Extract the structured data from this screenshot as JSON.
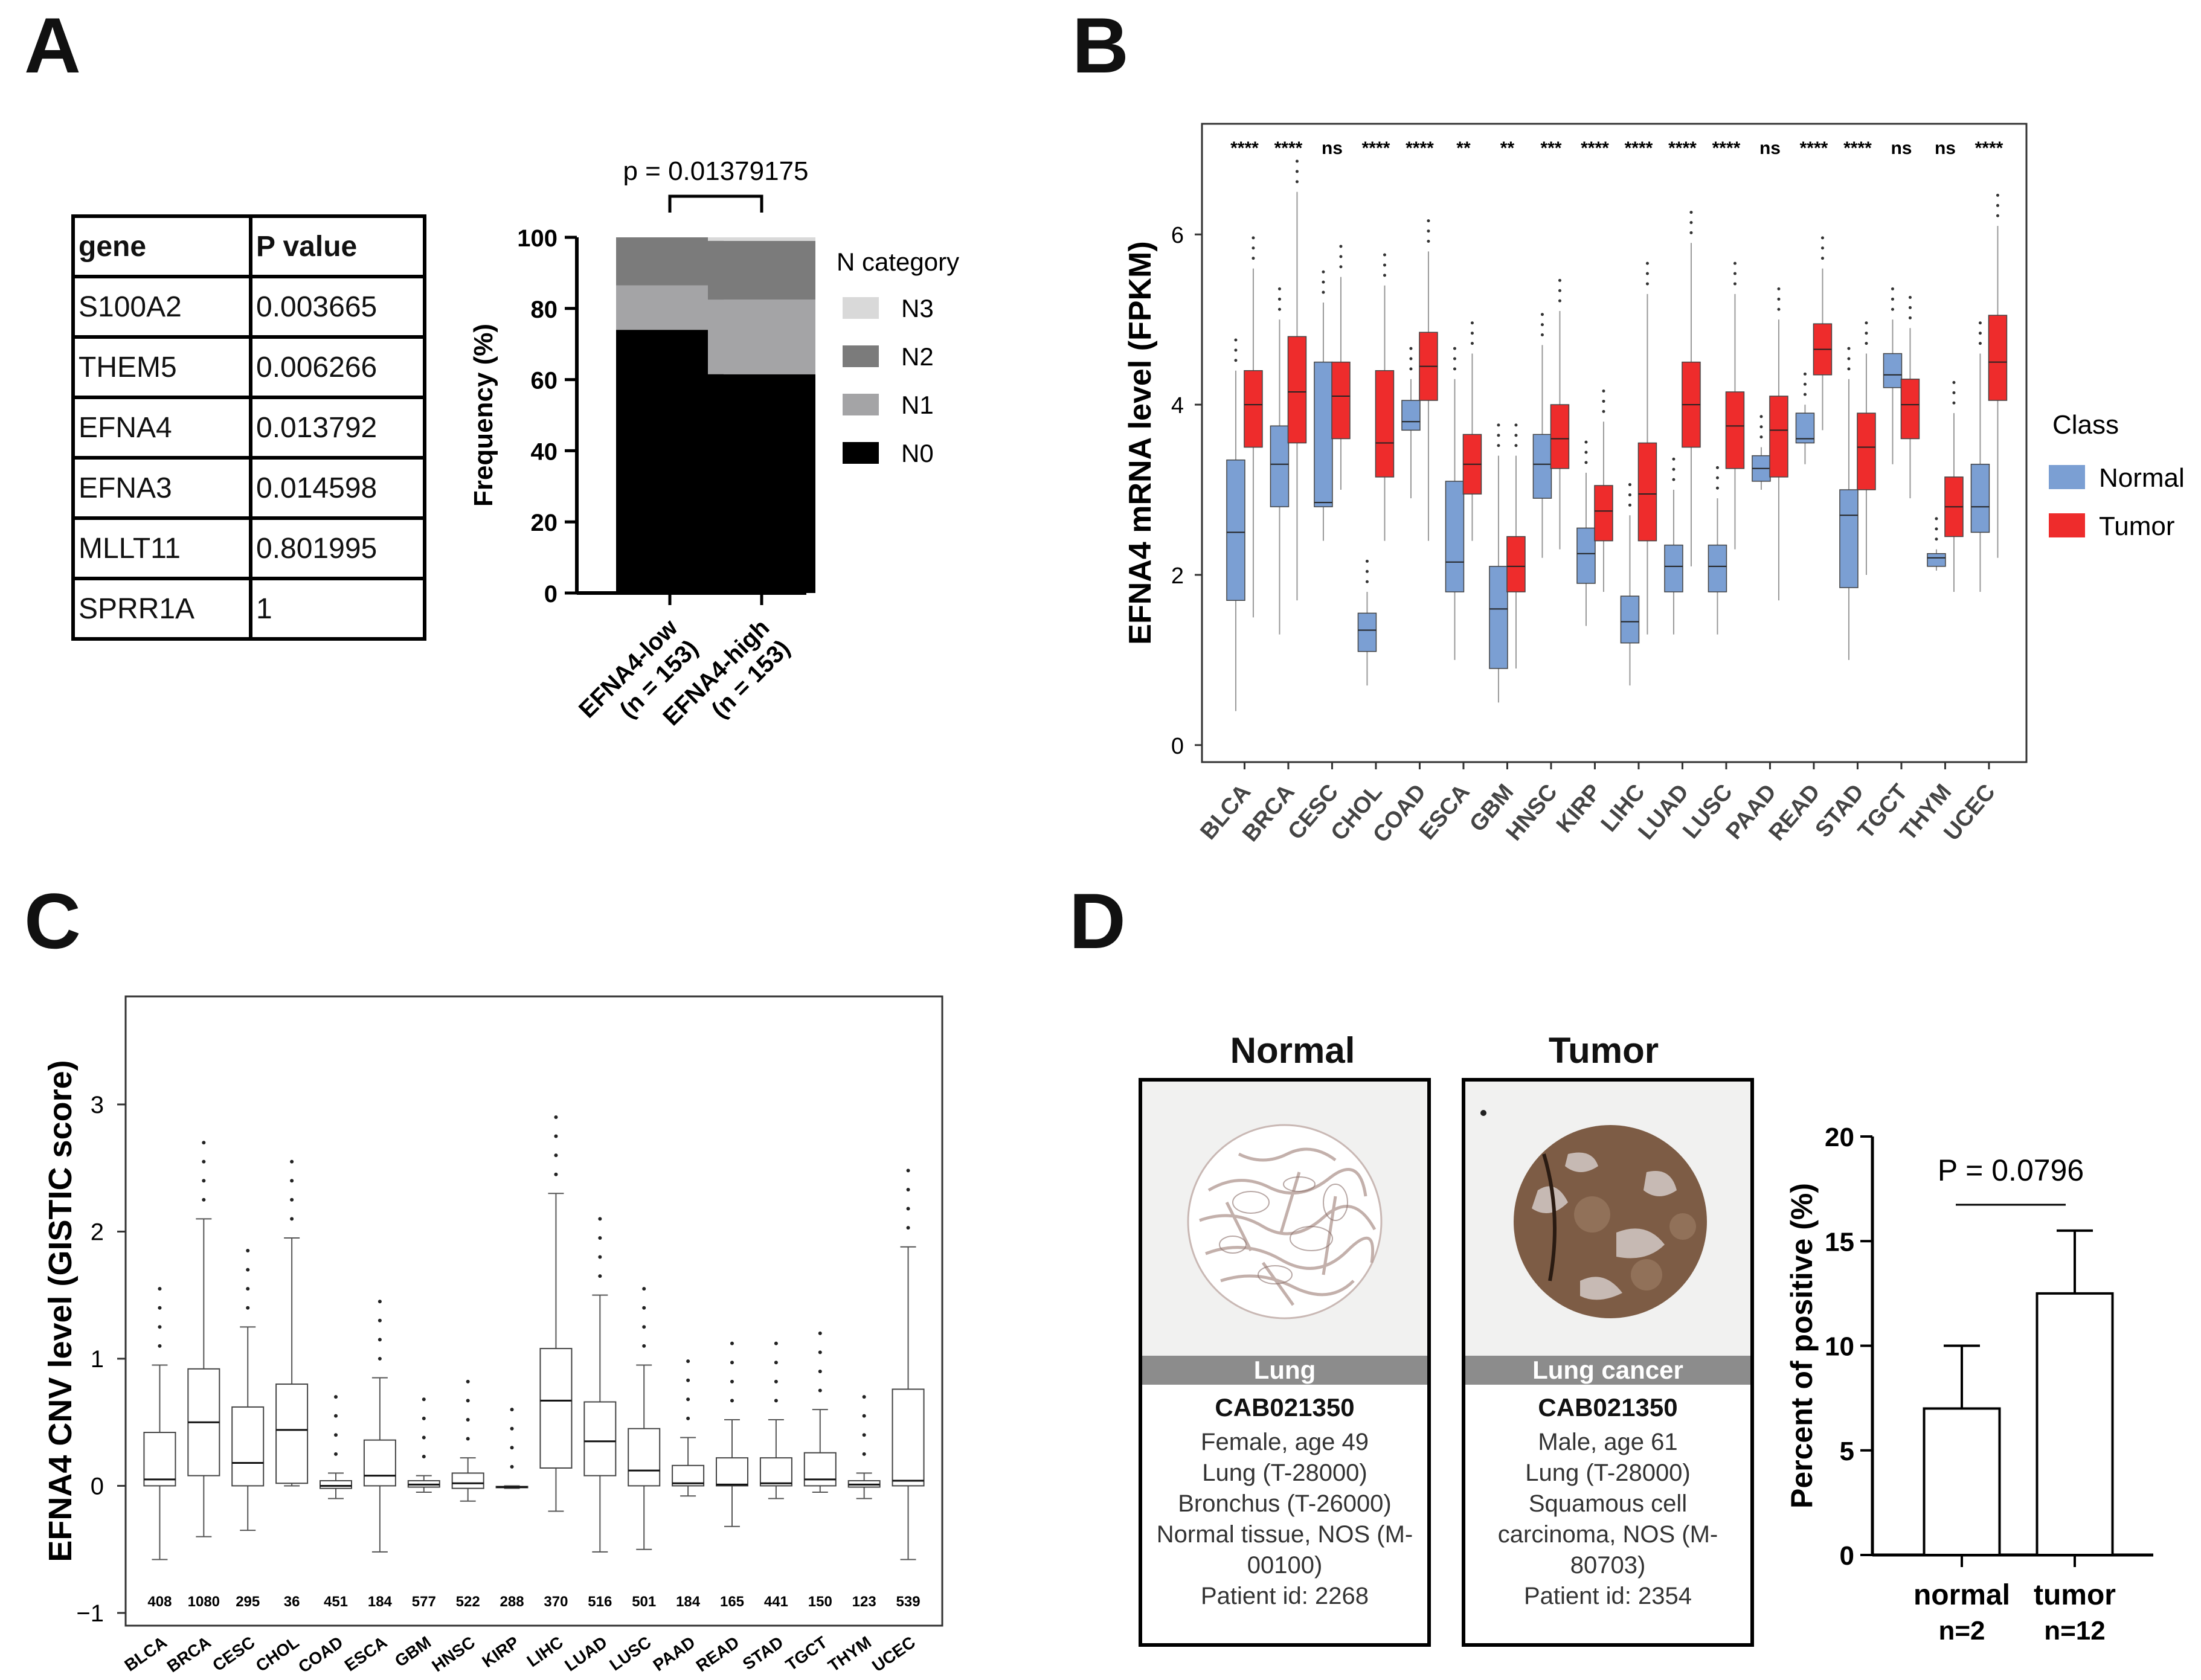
{
  "panel_labels": [
    "A",
    "B",
    "C",
    "D"
  ],
  "panel_a_table": {
    "headers": [
      "gene",
      "P value"
    ],
    "rows": [
      [
        "S100A2",
        "0.003665"
      ],
      [
        "THEM5",
        "0.006266"
      ],
      [
        "EFNA4",
        "0.013792"
      ],
      [
        "EFNA3",
        "0.014598"
      ],
      [
        "MLLT11",
        "0.801995"
      ],
      [
        "SPRR1A",
        "1"
      ]
    ]
  },
  "panel_d_tma": {
    "normal": {
      "title": "Normal",
      "band": "Lung",
      "antibody": "CAB021350",
      "lines": [
        "Female, age 49",
        "Lung (T-28000)",
        "Bronchus (T-26000)",
        "Normal tissue, NOS (M-",
        "00100)",
        "Patient id: 2268"
      ]
    },
    "tumor": {
      "title": "Tumor",
      "band": "Lung cancer",
      "antibody": "CAB021350",
      "lines": [
        "Male, age 61",
        "Lung (T-28000)",
        "Squamous cell",
        "carcinoma, NOS (M-",
        "80703)",
        "Patient id: 2354"
      ]
    }
  },
  "chart_data": [
    {
      "id": "A",
      "type": "bar",
      "stacked": true,
      "title": "p = 0.01379175",
      "ylabel": "Frequency (%)",
      "ylim": [
        0,
        100
      ],
      "yticks": [
        0,
        20,
        40,
        60,
        80,
        100
      ],
      "categories": [
        "EFNA4-low\n(n = 153)",
        "EFNA4-high\n(n = 153)"
      ],
      "legend_title": "N category",
      "series": [
        {
          "name": "N0",
          "color": "#000000",
          "values": [
            74,
            61.5
          ]
        },
        {
          "name": "N1",
          "color": "#a4a4a6",
          "values": [
            12.5,
            21
          ]
        },
        {
          "name": "N2",
          "color": "#7b7b7b",
          "values": [
            13.5,
            16.5
          ]
        },
        {
          "name": "N3",
          "color": "#d9d9d9",
          "values": [
            0,
            1
          ]
        }
      ]
    },
    {
      "id": "B",
      "type": "box",
      "ylabel": "EFNA4 mRNA level (FPKM)",
      "ylim": [
        -0.2,
        7.3
      ],
      "yticks": [
        0,
        2,
        4,
        6
      ],
      "legend_title": "Class",
      "classes": [
        {
          "name": "Normal",
          "color": "#7b9fd3"
        },
        {
          "name": "Tumor",
          "color": "#ee2c2c"
        }
      ],
      "categories": [
        "BLCA",
        "BRCA",
        "CESC",
        "CHOL",
        "COAD",
        "ESCA",
        "GBM",
        "HNSC",
        "KIRP",
        "LIHC",
        "LUAD",
        "LUSC",
        "PAAD",
        "READ",
        "STAD",
        "TGCT",
        "THYM",
        "UCEC"
      ],
      "significance": [
        "****",
        "****",
        "ns",
        "****",
        "****",
        "**",
        "**",
        "***",
        "****",
        "****",
        "****",
        "****",
        "ns",
        "****",
        "****",
        "ns",
        "ns",
        "****"
      ],
      "normal": [
        {
          "whislo": 0.4,
          "q1": 1.7,
          "med": 2.5,
          "q3": 3.35,
          "whishi": 4.4
        },
        {
          "whislo": 1.3,
          "q1": 2.8,
          "med": 3.3,
          "q3": 3.75,
          "whishi": 5.0
        },
        {
          "whislo": 2.4,
          "q1": 2.8,
          "med": 2.85,
          "q3": 4.5,
          "whishi": 5.2
        },
        {
          "whislo": 0.7,
          "q1": 1.1,
          "med": 1.35,
          "q3": 1.55,
          "whishi": 1.8
        },
        {
          "whislo": 2.9,
          "q1": 3.7,
          "med": 3.8,
          "q3": 4.05,
          "whishi": 4.3
        },
        {
          "whislo": 1.0,
          "q1": 1.8,
          "med": 2.15,
          "q3": 3.1,
          "whishi": 4.3
        },
        {
          "whislo": 0.5,
          "q1": 0.9,
          "med": 1.6,
          "q3": 2.1,
          "whishi": 3.4
        },
        {
          "whislo": 2.2,
          "q1": 2.9,
          "med": 3.3,
          "q3": 3.65,
          "whishi": 4.7
        },
        {
          "whislo": 1.4,
          "q1": 1.9,
          "med": 2.25,
          "q3": 2.55,
          "whishi": 3.2
        },
        {
          "whislo": 0.7,
          "q1": 1.2,
          "med": 1.45,
          "q3": 1.75,
          "whishi": 2.7
        },
        {
          "whislo": 1.3,
          "q1": 1.8,
          "med": 2.1,
          "q3": 2.35,
          "whishi": 3.0
        },
        {
          "whislo": 1.3,
          "q1": 1.8,
          "med": 2.1,
          "q3": 2.35,
          "whishi": 2.9
        },
        {
          "whislo": 3.0,
          "q1": 3.1,
          "med": 3.25,
          "q3": 3.4,
          "whishi": 3.5
        },
        {
          "whislo": 3.3,
          "q1": 3.55,
          "med": 3.6,
          "q3": 3.9,
          "whishi": 4.0
        },
        {
          "whislo": 1.0,
          "q1": 1.85,
          "med": 2.7,
          "q3": 3.0,
          "whishi": 4.3
        },
        {
          "whislo": 3.3,
          "q1": 4.2,
          "med": 4.35,
          "q3": 4.6,
          "whishi": 5.0
        },
        {
          "whislo": 2.05,
          "q1": 2.1,
          "med": 2.2,
          "q3": 2.25,
          "whishi": 2.3
        },
        {
          "whislo": 1.8,
          "q1": 2.5,
          "med": 2.8,
          "q3": 3.3,
          "whishi": 4.6
        }
      ],
      "tumor": [
        {
          "whislo": 1.5,
          "q1": 3.5,
          "med": 4.0,
          "q3": 4.4,
          "whishi": 5.6
        },
        {
          "whislo": 1.7,
          "q1": 3.55,
          "med": 4.15,
          "q3": 4.8,
          "whishi": 6.5
        },
        {
          "whislo": 3.0,
          "q1": 3.6,
          "med": 4.1,
          "q3": 4.5,
          "whishi": 5.5
        },
        {
          "whislo": 2.4,
          "q1": 3.15,
          "med": 3.55,
          "q3": 4.4,
          "whishi": 5.4
        },
        {
          "whislo": 2.4,
          "q1": 4.05,
          "med": 4.45,
          "q3": 4.85,
          "whishi": 5.8
        },
        {
          "whislo": 2.4,
          "q1": 2.95,
          "med": 3.3,
          "q3": 3.65,
          "whishi": 4.6
        },
        {
          "whislo": 0.9,
          "q1": 1.8,
          "med": 2.1,
          "q3": 2.45,
          "whishi": 3.4
        },
        {
          "whislo": 2.3,
          "q1": 3.25,
          "med": 3.6,
          "q3": 4.0,
          "whishi": 5.1
        },
        {
          "whislo": 1.8,
          "q1": 2.4,
          "med": 2.75,
          "q3": 3.05,
          "whishi": 3.8
        },
        {
          "whislo": 1.3,
          "q1": 2.4,
          "med": 2.95,
          "q3": 3.55,
          "whishi": 5.3
        },
        {
          "whislo": 2.1,
          "q1": 3.5,
          "med": 4.0,
          "q3": 4.5,
          "whishi": 5.9
        },
        {
          "whislo": 2.3,
          "q1": 3.25,
          "med": 3.75,
          "q3": 4.15,
          "whishi": 5.3
        },
        {
          "whislo": 1.7,
          "q1": 3.15,
          "med": 3.7,
          "q3": 4.1,
          "whishi": 5.0
        },
        {
          "whislo": 3.7,
          "q1": 4.35,
          "med": 4.65,
          "q3": 4.95,
          "whishi": 5.6
        },
        {
          "whislo": 2.0,
          "q1": 3.0,
          "med": 3.5,
          "q3": 3.9,
          "whishi": 4.6
        },
        {
          "whislo": 2.9,
          "q1": 3.6,
          "med": 4.0,
          "q3": 4.3,
          "whishi": 4.9
        },
        {
          "whislo": 1.8,
          "q1": 2.45,
          "med": 2.8,
          "q3": 3.15,
          "whishi": 3.9
        },
        {
          "whislo": 2.2,
          "q1": 4.05,
          "med": 4.5,
          "q3": 5.05,
          "whishi": 6.1
        }
      ]
    },
    {
      "id": "C",
      "type": "box",
      "ylabel": "EFNA4 CNV level (GISTIC score)",
      "ylim": [
        -1.1,
        3.85
      ],
      "yticks": [
        -1,
        0,
        1,
        2,
        3
      ],
      "categories": [
        "BLCA",
        "BRCA",
        "CESC",
        "CHOL",
        "COAD",
        "ESCA",
        "GBM",
        "HNSC",
        "KIRP",
        "LIHC",
        "LUAD",
        "LUSC",
        "PAAD",
        "READ",
        "STAD",
        "TGCT",
        "THYM",
        "UCEC"
      ],
      "sample_sizes": [
        "408",
        "1080",
        "295",
        "36",
        "451",
        "184",
        "577",
        "522",
        "288",
        "370",
        "516",
        "501",
        "184",
        "165",
        "441",
        "150",
        "123",
        "539"
      ],
      "boxes": [
        {
          "whislo": -0.58,
          "q1": 0.0,
          "med": 0.05,
          "q3": 0.42,
          "whishi": 0.95
        },
        {
          "whislo": -0.4,
          "q1": 0.08,
          "med": 0.5,
          "q3": 0.92,
          "whishi": 2.1
        },
        {
          "whislo": -0.35,
          "q1": 0.0,
          "med": 0.18,
          "q3": 0.62,
          "whishi": 1.25
        },
        {
          "whislo": 0.0,
          "q1": 0.02,
          "med": 0.44,
          "q3": 0.8,
          "whishi": 1.95
        },
        {
          "whislo": -0.1,
          "q1": -0.02,
          "med": 0.0,
          "q3": 0.04,
          "whishi": 0.1
        },
        {
          "whislo": -0.52,
          "q1": 0.0,
          "med": 0.08,
          "q3": 0.36,
          "whishi": 0.85
        },
        {
          "whislo": -0.05,
          "q1": -0.01,
          "med": 0.01,
          "q3": 0.04,
          "whishi": 0.08
        },
        {
          "whislo": -0.12,
          "q1": -0.02,
          "med": 0.02,
          "q3": 0.1,
          "whishi": 0.22
        },
        {
          "whislo": -0.02,
          "q1": -0.01,
          "med": -0.01,
          "q3": -0.005,
          "whishi": 0.0
        },
        {
          "whislo": -0.2,
          "q1": 0.14,
          "med": 0.67,
          "q3": 1.08,
          "whishi": 2.3
        },
        {
          "whislo": -0.52,
          "q1": 0.08,
          "med": 0.35,
          "q3": 0.66,
          "whishi": 1.5
        },
        {
          "whislo": -0.5,
          "q1": 0.0,
          "med": 0.12,
          "q3": 0.45,
          "whishi": 0.95
        },
        {
          "whislo": -0.08,
          "q1": 0.0,
          "med": 0.02,
          "q3": 0.16,
          "whishi": 0.38
        },
        {
          "whislo": -0.32,
          "q1": 0.0,
          "med": 0.01,
          "q3": 0.22,
          "whishi": 0.52
        },
        {
          "whislo": -0.1,
          "q1": 0.0,
          "med": 0.02,
          "q3": 0.22,
          "whishi": 0.52
        },
        {
          "whislo": -0.05,
          "q1": 0.0,
          "med": 0.05,
          "q3": 0.26,
          "whishi": 0.6
        },
        {
          "whislo": -0.1,
          "q1": -0.01,
          "med": 0.01,
          "q3": 0.04,
          "whishi": 0.1
        },
        {
          "whislo": -0.58,
          "q1": 0.0,
          "med": 0.04,
          "q3": 0.76,
          "whishi": 1.88
        }
      ]
    },
    {
      "id": "D",
      "type": "bar",
      "title": "P = 0.0796",
      "ylabel": "Percent of positive (%)",
      "ylim": [
        0,
        20
      ],
      "yticks": [
        0,
        5,
        10,
        15,
        20
      ],
      "categories": [
        "normal",
        "tumor"
      ],
      "sample_sizes": [
        "n=2",
        "n=12"
      ],
      "values": [
        7.0,
        12.5
      ],
      "errors": [
        3.0,
        3.0
      ]
    }
  ]
}
